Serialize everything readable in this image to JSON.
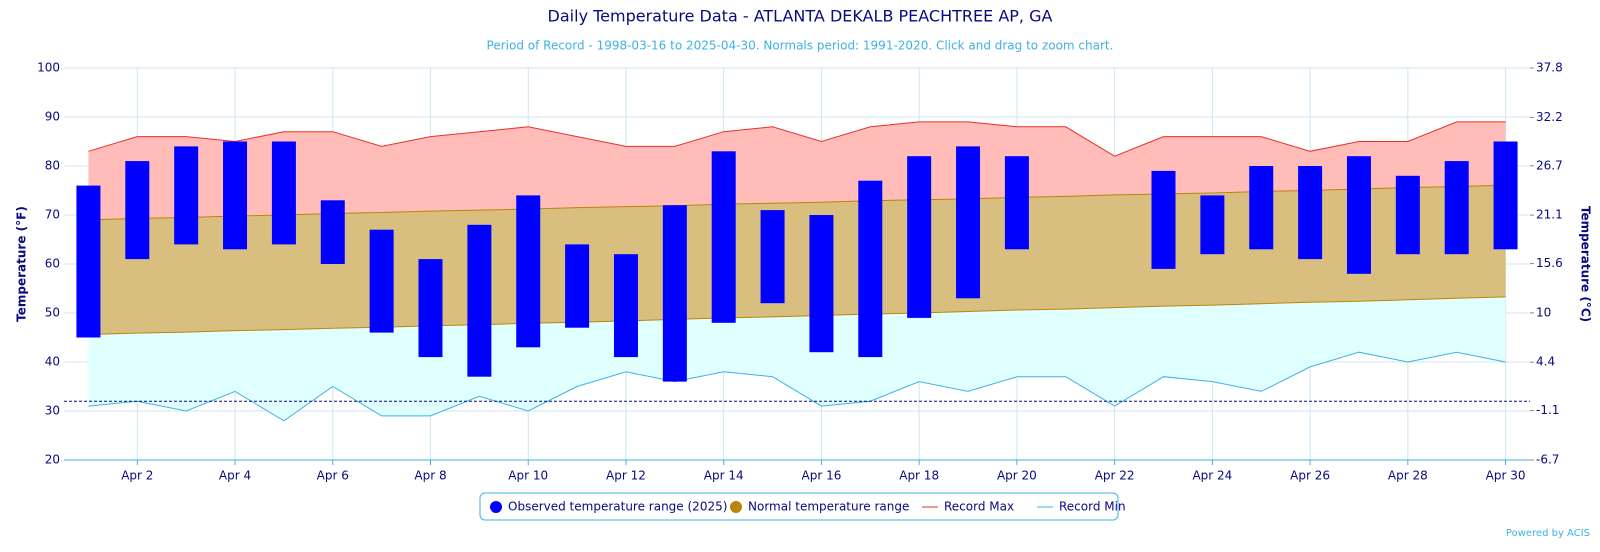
{
  "chart_data": {
    "type": "range",
    "title": "Daily Temperature Data - ATLANTA DEKALB PEACHTREE AP, GA",
    "subtitle": "Period of Record - 1998-03-16 to 2025-04-30. Normals period: 1991-2020. Click and drag to zoom chart.",
    "y_label": "Temperature (°F)",
    "y2_label": "Temperature (°C)",
    "credit": "Powered by ACIS",
    "categories": [
      null,
      "Apr 2",
      null,
      "Apr 4",
      null,
      "Apr 6",
      null,
      "Apr 8",
      null,
      "Apr 10",
      null,
      "Apr 12",
      null,
      "Apr 14",
      null,
      "Apr 16",
      null,
      "Apr 18",
      null,
      "Apr 20",
      null,
      "Apr 22",
      null,
      "Apr 24",
      null,
      "Apr 26",
      null,
      "Apr 28",
      null,
      "Apr 30"
    ],
    "ylim": [
      20,
      100
    ],
    "yticks": [
      20,
      30,
      40,
      50,
      60,
      70,
      80,
      90,
      100
    ],
    "y2lim": [
      -6.7,
      37.8
    ],
    "y2ticks": [
      -6.7,
      -1.1,
      4.4,
      10,
      15.6,
      21.1,
      26.7,
      32.2,
      37.8
    ],
    "grid": true,
    "freezing_line": 32,
    "legend": "bottom",
    "series": [
      {
        "name": "Observed temperature range (2025)",
        "color": "#0000ff",
        "low": [
          45,
          61,
          64,
          63,
          64,
          60,
          46,
          41,
          37,
          43,
          47,
          41,
          36,
          48,
          52,
          42,
          41,
          49,
          53,
          63,
          null,
          null,
          59,
          62,
          63,
          61,
          58,
          62,
          62,
          63
        ],
        "high": [
          76,
          81,
          84,
          85,
          85,
          73,
          67,
          61,
          68,
          74,
          64,
          62,
          72,
          83,
          71,
          70,
          77,
          82,
          84,
          82,
          null,
          null,
          79,
          74,
          80,
          80,
          82,
          78,
          81,
          85
        ]
      },
      {
        "name": "Normal temperature range",
        "color": "#b8860b",
        "fill": "#d9bf7f",
        "low": [
          45.6,
          45.9,
          46.1,
          46.4,
          46.6,
          46.9,
          47.1,
          47.4,
          47.6,
          47.9,
          48.1,
          48.4,
          48.7,
          49,
          49.2,
          49.5,
          49.8,
          50,
          50.3,
          50.6,
          50.8,
          51.1,
          51.4,
          51.6,
          51.9,
          52.2,
          52.4,
          52.7,
          53,
          53.3
        ],
        "high": [
          69,
          69.3,
          69.5,
          69.8,
          70,
          70.3,
          70.5,
          70.8,
          71,
          71.2,
          71.5,
          71.7,
          71.9,
          72.2,
          72.4,
          72.6,
          72.9,
          73.1,
          73.3,
          73.6,
          73.8,
          74.1,
          74.3,
          74.5,
          74.8,
          75,
          75.3,
          75.6,
          75.8,
          76.1
        ]
      },
      {
        "name": "Record Max",
        "color": "#e8302a",
        "fill": "#ffbcb8",
        "values": [
          83,
          86,
          86,
          85,
          87,
          87,
          84,
          86,
          87,
          88,
          86,
          84,
          84,
          87,
          88,
          85,
          88,
          89,
          89,
          88,
          88,
          82,
          86,
          86,
          86,
          83,
          85,
          85,
          89,
          89
        ]
      },
      {
        "name": "Record Min",
        "color": "#3fb1e5",
        "fill": "#e0ffff",
        "values": [
          31,
          32,
          30,
          34,
          28,
          35,
          29,
          29,
          33,
          30,
          35,
          38,
          36,
          38,
          37,
          31,
          32,
          36,
          34,
          37,
          37,
          31,
          37,
          36,
          34,
          39,
          42,
          40,
          42,
          40
        ]
      }
    ]
  }
}
